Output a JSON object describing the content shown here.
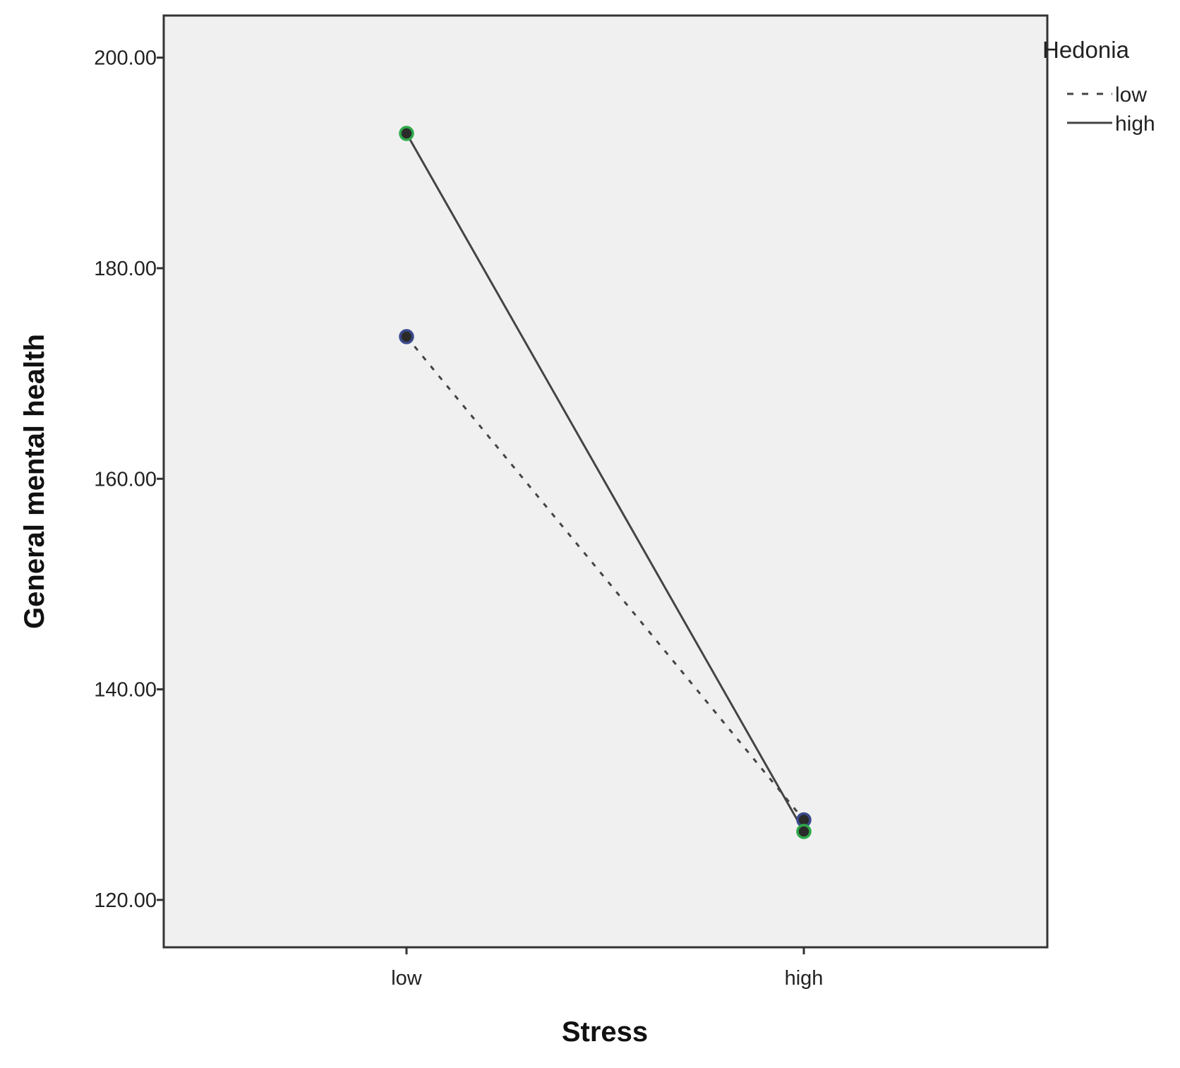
{
  "chart_data": {
    "type": "line",
    "title": "",
    "xlabel": "Stress",
    "ylabel": "General mental health",
    "categories": [
      "low",
      "high"
    ],
    "ylim": [
      115.5,
      204
    ],
    "yticks": [
      120,
      140,
      160,
      180,
      200
    ],
    "ytick_labels": [
      "120.00",
      "140.00",
      "160.00",
      "180.00",
      "200.00"
    ],
    "grid": false,
    "legend": {
      "title": "Hedonia",
      "position": "top-right outside"
    },
    "series": [
      {
        "name": "low",
        "values": [
          173.5,
          127.6
        ],
        "line_style": "dashed",
        "marker_color": "#3b4a8c"
      },
      {
        "name": "high",
        "values": [
          192.8,
          126.5
        ],
        "line_style": "solid",
        "marker_color": "#2fa84a"
      }
    ],
    "colors": {
      "plot_background": "#f0f0f0",
      "line": "#444444",
      "marker_fill": "#2a2a2a"
    }
  }
}
